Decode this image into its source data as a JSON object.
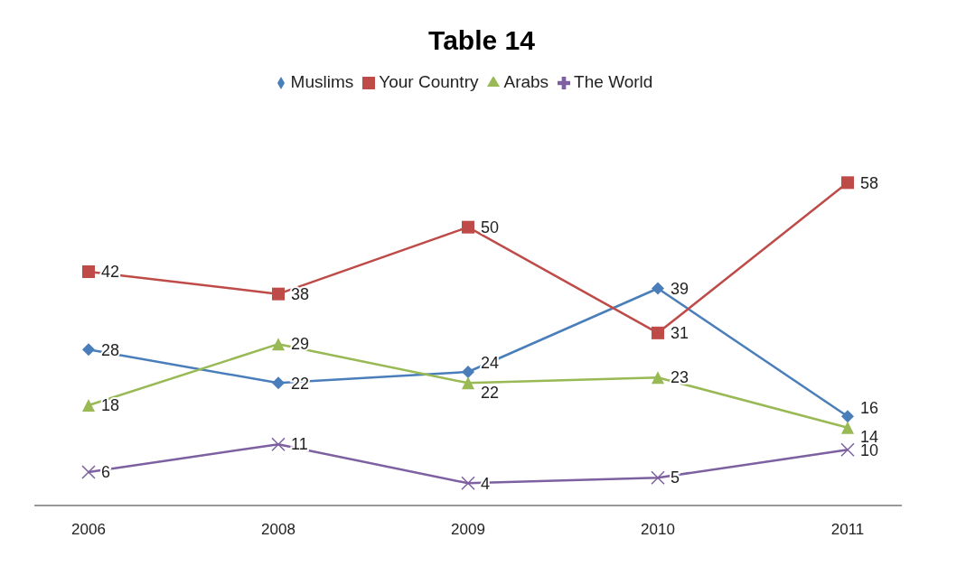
{
  "chart_data": {
    "type": "line",
    "title": "Table 14",
    "categories": [
      "2006",
      "2008",
      "2009",
      "2010",
      "2011"
    ],
    "series": [
      {
        "name": "Muslims",
        "color": "#4a7ebb",
        "marker": "diamond",
        "values": [
          28,
          22,
          24,
          39,
          16
        ]
      },
      {
        "name": "Your Country",
        "color": "#be4b48",
        "marker": "square",
        "values": [
          42,
          38,
          50,
          31,
          58
        ]
      },
      {
        "name": "Arabs",
        "color": "#98b954",
        "marker": "triangle",
        "values": [
          18,
          29,
          22,
          23,
          14
        ]
      },
      {
        "name": "The World",
        "color": "#7d60a0",
        "marker": "cross",
        "values": [
          6,
          11,
          4,
          5,
          10
        ]
      }
    ],
    "data_labels": true,
    "legend": "top",
    "grid": false,
    "line_style": "solid"
  }
}
